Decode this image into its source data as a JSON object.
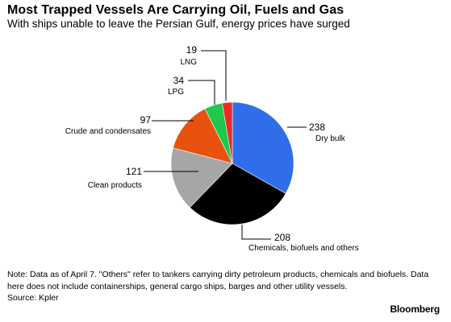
{
  "header": {
    "title": "Most Trapped Vessels Are Carrying Oil, Fuels and Gas",
    "subtitle": "With ships unable to leave the Persian Gulf, energy prices have surged"
  },
  "chart_data": {
    "type": "pie",
    "title": "Most Trapped Vessels Are Carrying Oil, Fuels and Gas",
    "subtitle": "With ships unable to leave the Persian Gulf, energy prices have surged",
    "slices": [
      {
        "label": "Dry bulk",
        "value": 238,
        "display": "238",
        "color": "#2f6ee8"
      },
      {
        "label": "Chemicals, biofuels and others",
        "value": 208,
        "display": "208",
        "color": "#000000"
      },
      {
        "label": "Clean products",
        "value": 121,
        "display": "121",
        "color": "#a6a6a6"
      },
      {
        "label": "Crude and condensates",
        "value": 97,
        "display": "97",
        "color": "#e8520e"
      },
      {
        "label": "LPG",
        "value": 34,
        "display": "34",
        "color": "#1ec84b"
      },
      {
        "label": "LNG",
        "value": 19,
        "display": "19",
        "color": "#ee2a24"
      }
    ]
  },
  "footer": {
    "note": "Note: Data as of April 7. \"Others\" refer to tankers carrying dirty petroleum products, chemicals and biofuels. Data here does not include containerships, general cargo ships, barges and other utility vessels.",
    "source": "Source: Kpler",
    "brand": "Bloomberg"
  }
}
